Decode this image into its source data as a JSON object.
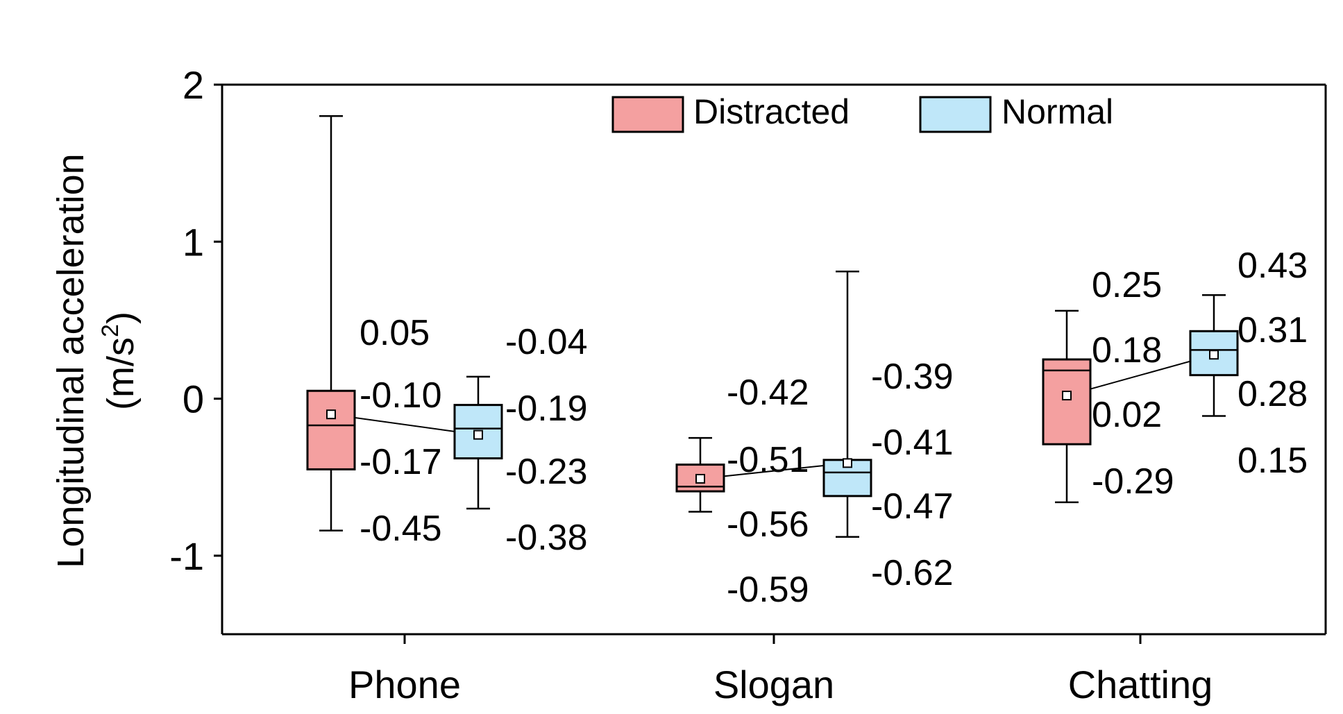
{
  "chart_data": {
    "type": "box",
    "title": "",
    "xlabel": "",
    "ylabel": "Longitudinal acceleration",
    "ylabel_unit_prefix": "(m/s",
    "ylabel_unit_exp": "2",
    "ylabel_unit_suffix": ")",
    "ylim": [
      -1.5,
      2
    ],
    "yticks": [
      -1,
      0,
      1,
      2
    ],
    "ytick_labels": [
      "-1",
      "0",
      "1",
      "2"
    ],
    "categories": [
      "Phone",
      "Slogan",
      "Chatting"
    ],
    "legend_position": "top-right",
    "series": [
      {
        "name": "Distracted",
        "color": "#f4a0a0",
        "boxes": [
          {
            "whisker_low": -0.84,
            "q1": -0.45,
            "median": -0.17,
            "mean": -0.1,
            "q3": 0.05,
            "whisker_high": 1.8,
            "labels": [
              "0.05",
              "-0.10",
              "-0.17",
              "-0.45"
            ]
          },
          {
            "whisker_low": -0.72,
            "q1": -0.59,
            "median": -0.56,
            "mean": -0.51,
            "q3": -0.42,
            "whisker_high": -0.25,
            "labels": [
              "-0.42",
              "-0.51",
              "-0.56",
              "-0.59"
            ]
          },
          {
            "whisker_low": -0.66,
            "q1": -0.29,
            "median": 0.18,
            "mean": 0.02,
            "q3": 0.25,
            "whisker_high": 0.56,
            "labels": [
              "0.25",
              "0.18",
              "0.02",
              "-0.29"
            ]
          }
        ]
      },
      {
        "name": "Normal",
        "color": "#bfe7f9",
        "boxes": [
          {
            "whisker_low": -0.7,
            "q1": -0.38,
            "median": -0.19,
            "mean": -0.23,
            "q3": -0.04,
            "whisker_high": 0.14,
            "labels": [
              "-0.04",
              "-0.19",
              "-0.23",
              "-0.38"
            ]
          },
          {
            "whisker_low": -0.88,
            "q1": -0.62,
            "median": -0.47,
            "mean": -0.41,
            "q3": -0.39,
            "whisker_high": 0.81,
            "labels": [
              "-0.39",
              "-0.41",
              "-0.47",
              "-0.62"
            ]
          },
          {
            "whisker_low": -0.11,
            "q1": 0.15,
            "median": 0.31,
            "mean": 0.28,
            "q3": 0.43,
            "whisker_high": 0.66,
            "labels": [
              "0.43",
              "0.31",
              "0.28",
              "0.15"
            ]
          }
        ]
      }
    ]
  }
}
